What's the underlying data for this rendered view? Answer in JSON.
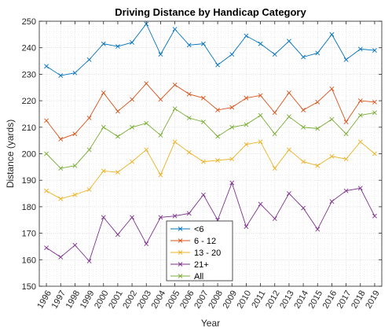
{
  "chart_data": {
    "type": "line",
    "title": "Driving Distance by Handicap Category",
    "xlabel": "Year",
    "ylabel": "Distance (yards)",
    "xlim": [
      1995.5,
      2019.5
    ],
    "ylim": [
      150,
      250
    ],
    "yticks": [
      150,
      160,
      170,
      180,
      190,
      200,
      210,
      220,
      230,
      240,
      250
    ],
    "x": [
      1996,
      1997,
      1998,
      1999,
      2000,
      2001,
      2002,
      2003,
      2004,
      2005,
      2006,
      2007,
      2008,
      2009,
      2010,
      2011,
      2012,
      2013,
      2014,
      2015,
      2016,
      2017,
      2018,
      2019
    ],
    "grid": "major and minor",
    "legend_position": "bottom-center",
    "marker": "x",
    "series": [
      {
        "name": "<6",
        "color": "#0072BD",
        "values": [
          233,
          229.5,
          230.5,
          235.5,
          241.5,
          240.5,
          242,
          249,
          237.5,
          247,
          241,
          241.5,
          233.5,
          237.5,
          244.5,
          241.5,
          237.5,
          242.5,
          236.5,
          238,
          245,
          235.5,
          239.5,
          239
        ]
      },
      {
        "name": "6 - 12",
        "color": "#D95319",
        "values": [
          212.5,
          205.5,
          207.5,
          213.5,
          223,
          216,
          220.5,
          226.5,
          220.5,
          226,
          222.5,
          221,
          216.5,
          217.5,
          221,
          222,
          215.5,
          223,
          216.5,
          219.5,
          224.5,
          212,
          220,
          219.5
        ]
      },
      {
        "name": "13 - 20",
        "color": "#EDB120",
        "values": [
          186,
          183,
          184.5,
          186.5,
          193.5,
          193,
          197,
          201.5,
          192,
          204.5,
          200.5,
          197,
          197.5,
          198,
          203.5,
          204.5,
          194.5,
          201.5,
          197,
          195.5,
          199,
          198,
          204.5,
          200
        ]
      },
      {
        "name": "21+",
        "color": "#7E2F8E",
        "values": [
          164.5,
          161,
          165.5,
          159.5,
          176,
          169.5,
          176,
          166,
          176,
          176.5,
          177.5,
          184.5,
          175,
          189,
          172.5,
          181,
          175.5,
          185,
          179.5,
          171.5,
          182,
          186,
          187,
          176.5
        ]
      },
      {
        "name": "All",
        "color": "#77AC30",
        "values": [
          200,
          194.5,
          195.5,
          201.5,
          210,
          206.5,
          210,
          211.5,
          207,
          217,
          213.5,
          212,
          206.5,
          210,
          211,
          214.5,
          207.5,
          214,
          210,
          209.5,
          213,
          207.5,
          214.5,
          215.5
        ]
      }
    ]
  }
}
